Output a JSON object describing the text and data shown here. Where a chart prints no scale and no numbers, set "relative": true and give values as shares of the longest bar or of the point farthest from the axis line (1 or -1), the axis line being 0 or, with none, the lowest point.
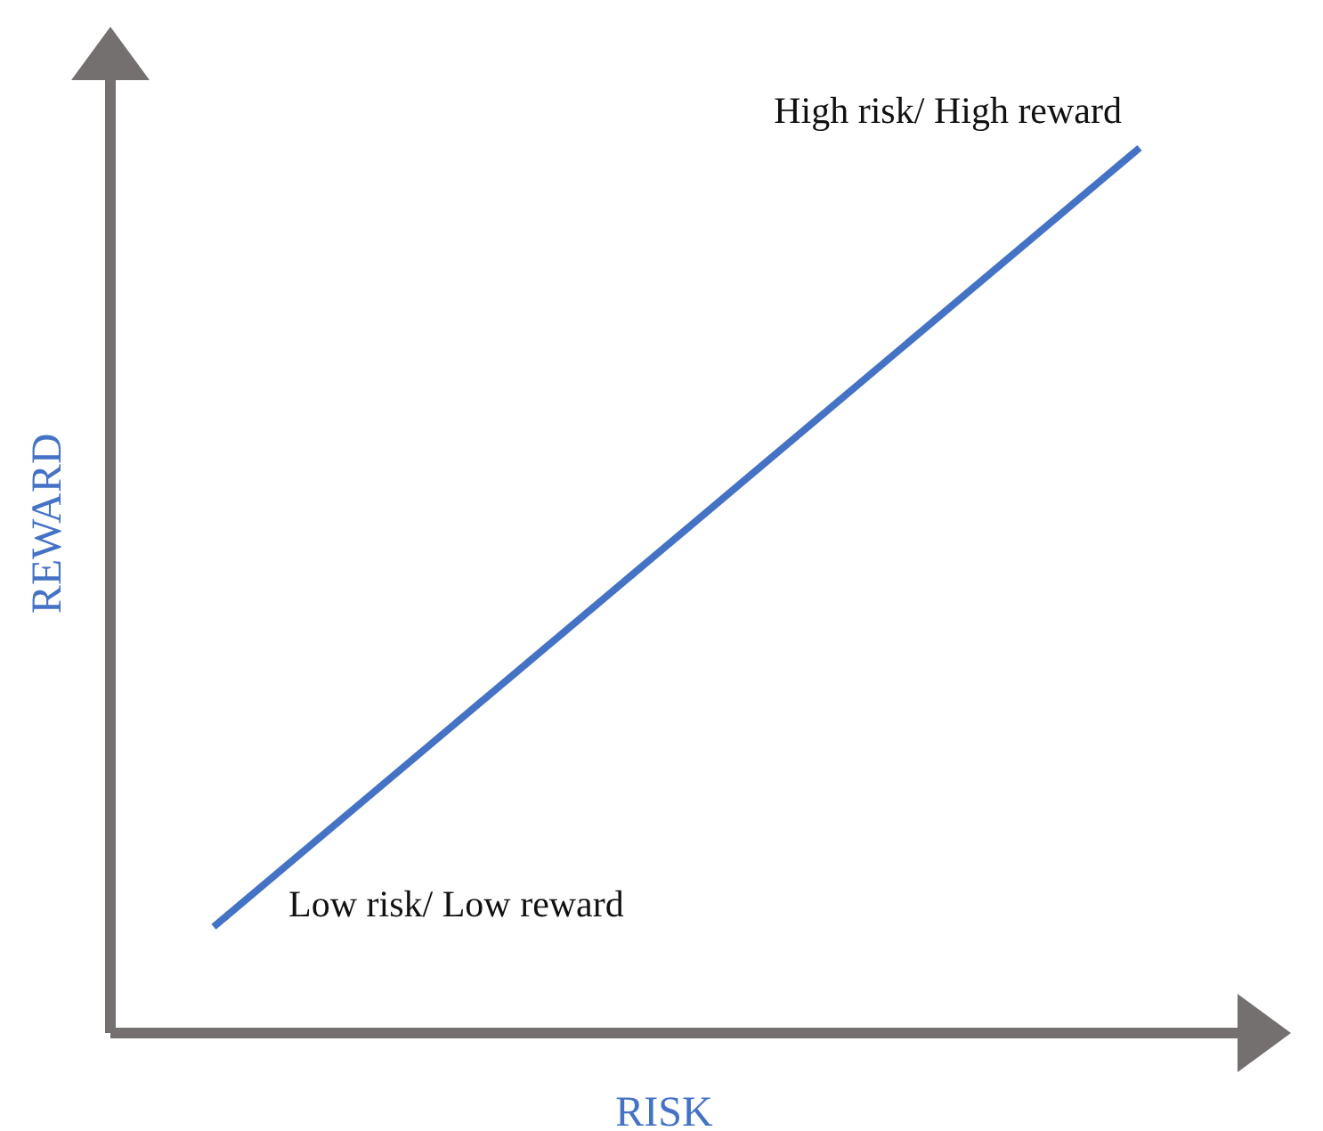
{
  "chart_data": {
    "type": "line",
    "relative": true,
    "xlabel": "RISK",
    "ylabel": "REWARD",
    "categories": [
      null,
      null
    ],
    "series": [
      {
        "color": "#4472c4",
        "values": [
          0.12,
          1
        ]
      }
    ],
    "annotations": [
      "Low risk/ Low reward",
      "High risk/ High reward"
    ]
  }
}
